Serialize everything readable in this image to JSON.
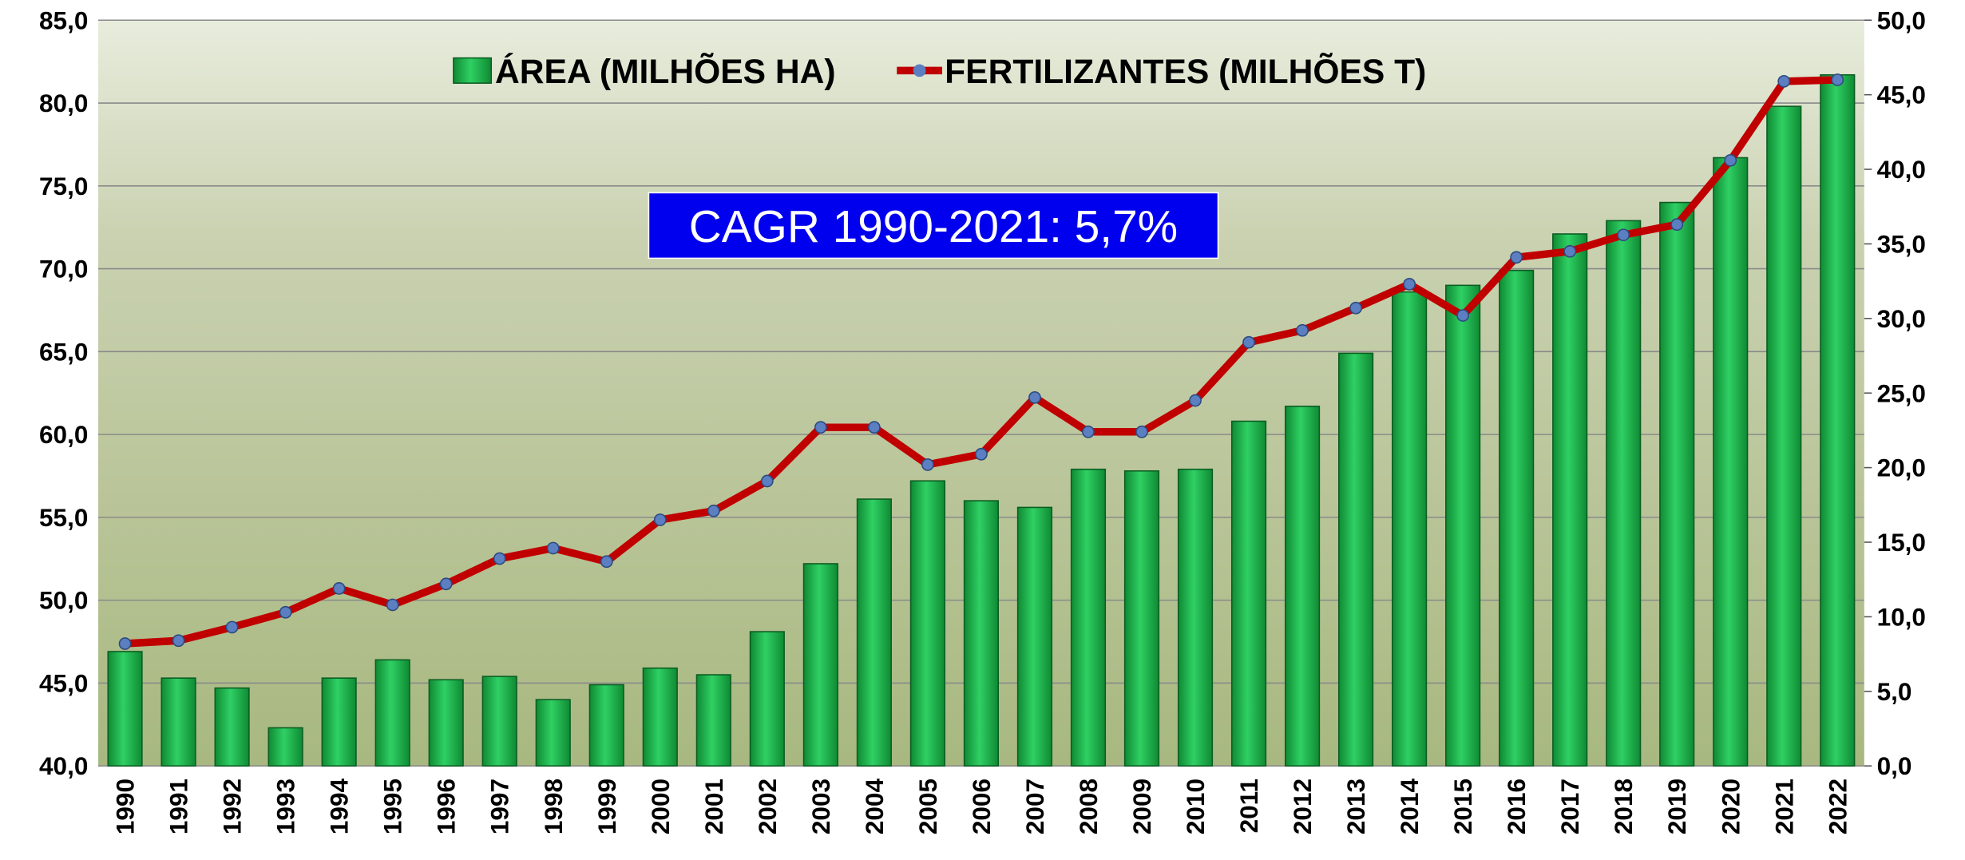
{
  "chart_data": {
    "type": "bar-line",
    "categories": [
      "1990",
      "1991",
      "1992",
      "1993",
      "1994",
      "1995",
      "1996",
      "1997",
      "1998",
      "1999",
      "2000",
      "2001",
      "2002",
      "2003",
      "2004",
      "2005",
      "2006",
      "2007",
      "2008",
      "2009",
      "2010",
      "2011",
      "2012",
      "2013",
      "2014",
      "2015",
      "2016",
      "2017",
      "2018",
      "2019",
      "2020",
      "2021",
      "2022"
    ],
    "series": [
      {
        "name": "ÁREA (MILHÕES HA)",
        "type": "bar",
        "color": "#1db34a",
        "values": [
          46.9,
          45.3,
          44.7,
          42.3,
          45.3,
          46.4,
          45.2,
          45.4,
          44.0,
          44.9,
          45.9,
          45.5,
          48.1,
          52.2,
          56.1,
          57.2,
          56.0,
          55.6,
          57.9,
          57.8,
          57.9,
          60.8,
          61.7,
          64.9,
          68.6,
          69.0,
          69.9,
          72.1,
          72.9,
          74.0,
          76.7,
          79.8,
          81.7
        ]
      },
      {
        "name": "FERTILIZANTES (MILHÕES T)",
        "type": "line",
        "axis": "y2",
        "color": "#c00000",
        "marker_color": "#5b7fc0",
        "values": [
          8.2,
          8.4,
          9.3,
          10.3,
          11.9,
          10.8,
          12.2,
          13.9,
          14.6,
          13.7,
          16.5,
          17.1,
          19.1,
          22.7,
          22.7,
          20.2,
          20.9,
          24.7,
          22.4,
          22.4,
          24.5,
          28.4,
          29.2,
          30.7,
          32.3,
          30.2,
          34.1,
          34.5,
          35.6,
          36.3,
          40.6,
          45.9,
          46.0
        ]
      }
    ],
    "ylim": [
      40,
      85
    ],
    "yticks": [
      {
        "value": 40,
        "label": "40,0"
      },
      {
        "value": 45,
        "label": "45,0"
      },
      {
        "value": 50,
        "label": "50,0"
      },
      {
        "value": 55,
        "label": "55,0"
      },
      {
        "value": 60,
        "label": "60,0"
      },
      {
        "value": 65,
        "label": "65,0"
      },
      {
        "value": 70,
        "label": "70,0"
      },
      {
        "value": 75,
        "label": "75,0"
      },
      {
        "value": 80,
        "label": "80,0"
      },
      {
        "value": 85,
        "label": "85,0"
      }
    ],
    "y2lim": [
      0,
      50
    ],
    "y2ticks": [
      {
        "value": 0,
        "label": "0,0"
      },
      {
        "value": 5,
        "label": "5,0"
      },
      {
        "value": 10,
        "label": "10,0"
      },
      {
        "value": 15,
        "label": "15,0"
      },
      {
        "value": 20,
        "label": "20,0"
      },
      {
        "value": 25,
        "label": "25,0"
      },
      {
        "value": 30,
        "label": "30,0"
      },
      {
        "value": 35,
        "label": "35,0"
      },
      {
        "value": 40,
        "label": "40,0"
      },
      {
        "value": 45,
        "label": "45,0"
      },
      {
        "value": 50,
        "label": "50,0"
      }
    ],
    "grid": true,
    "legend": "top",
    "annotation": "CAGR 1990-2021: 5,7%"
  }
}
